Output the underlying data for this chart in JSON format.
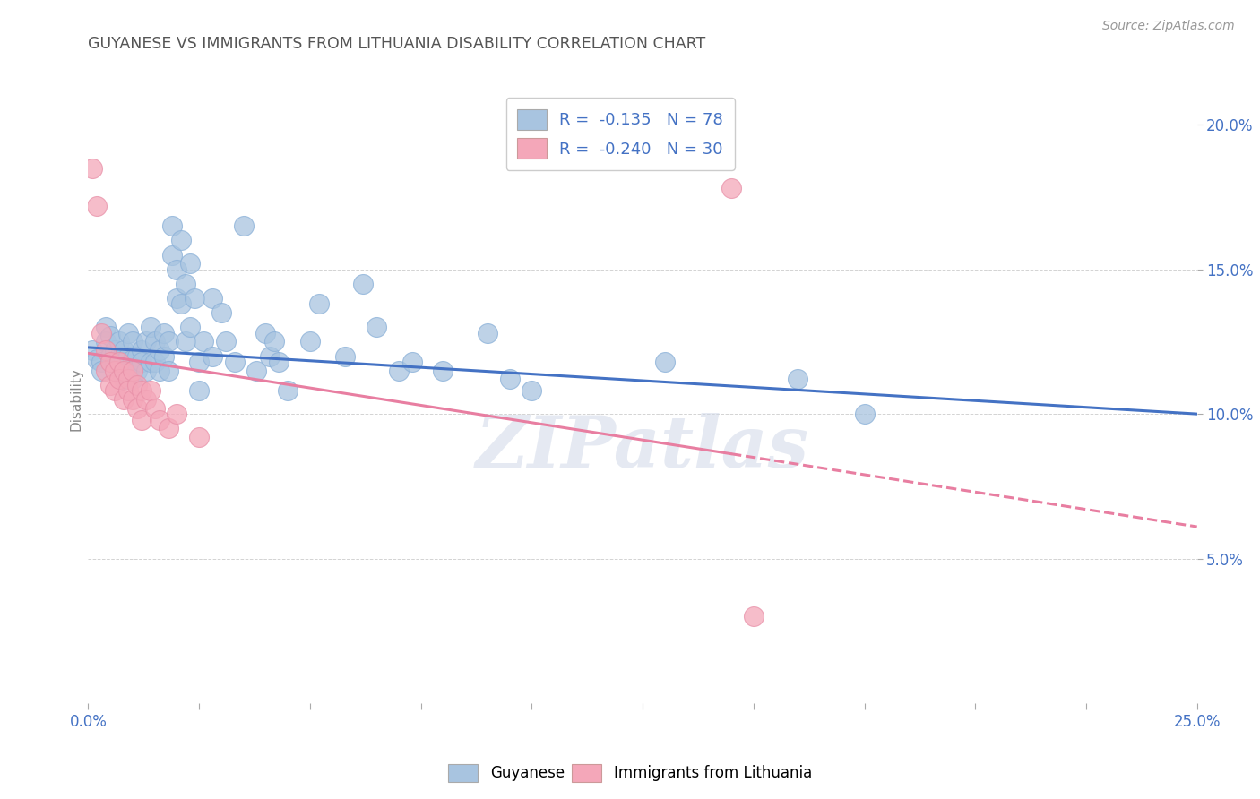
{
  "title": "GUYANESE VS IMMIGRANTS FROM LITHUANIA DISABILITY CORRELATION CHART",
  "source": "Source: ZipAtlas.com",
  "ylabel": "Disability",
  "xlabel": "",
  "xlim": [
    0.0,
    0.25
  ],
  "ylim": [
    0.0,
    0.21
  ],
  "xtick_positions": [
    0.0,
    0.025,
    0.05,
    0.075,
    0.1,
    0.125,
    0.15,
    0.175,
    0.2,
    0.225,
    0.25
  ],
  "xtick_labels_show": {
    "0.0": "0.0%",
    "0.25": "25.0%"
  },
  "yticks_right": [
    0.05,
    0.1,
    0.15,
    0.2
  ],
  "legend_r1": "R =  -0.135   N = 78",
  "legend_r2": "R =  -0.240   N = 30",
  "blue_color": "#a8c4e0",
  "pink_color": "#f4a7b9",
  "line_blue": "#4472c4",
  "line_pink": "#e87ea1",
  "axis_color": "#4472c4",
  "title_color": "#555555",
  "guyanese_points": [
    [
      0.001,
      0.122
    ],
    [
      0.002,
      0.119
    ],
    [
      0.003,
      0.118
    ],
    [
      0.003,
      0.115
    ],
    [
      0.004,
      0.13
    ],
    [
      0.004,
      0.125
    ],
    [
      0.005,
      0.127
    ],
    [
      0.005,
      0.12
    ],
    [
      0.006,
      0.122
    ],
    [
      0.006,
      0.118
    ],
    [
      0.007,
      0.125
    ],
    [
      0.007,
      0.12
    ],
    [
      0.007,
      0.115
    ],
    [
      0.008,
      0.122
    ],
    [
      0.008,
      0.118
    ],
    [
      0.008,
      0.112
    ],
    [
      0.009,
      0.128
    ],
    [
      0.009,
      0.12
    ],
    [
      0.009,
      0.115
    ],
    [
      0.01,
      0.125
    ],
    [
      0.01,
      0.119
    ],
    [
      0.01,
      0.112
    ],
    [
      0.011,
      0.12
    ],
    [
      0.011,
      0.115
    ],
    [
      0.012,
      0.122
    ],
    [
      0.012,
      0.118
    ],
    [
      0.013,
      0.125
    ],
    [
      0.013,
      0.115
    ],
    [
      0.014,
      0.13
    ],
    [
      0.014,
      0.118
    ],
    [
      0.015,
      0.125
    ],
    [
      0.015,
      0.118
    ],
    [
      0.016,
      0.122
    ],
    [
      0.016,
      0.115
    ],
    [
      0.017,
      0.128
    ],
    [
      0.017,
      0.12
    ],
    [
      0.018,
      0.125
    ],
    [
      0.018,
      0.115
    ],
    [
      0.019,
      0.165
    ],
    [
      0.019,
      0.155
    ],
    [
      0.02,
      0.15
    ],
    [
      0.02,
      0.14
    ],
    [
      0.021,
      0.16
    ],
    [
      0.021,
      0.138
    ],
    [
      0.022,
      0.145
    ],
    [
      0.022,
      0.125
    ],
    [
      0.023,
      0.152
    ],
    [
      0.023,
      0.13
    ],
    [
      0.024,
      0.14
    ],
    [
      0.025,
      0.118
    ],
    [
      0.025,
      0.108
    ],
    [
      0.026,
      0.125
    ],
    [
      0.028,
      0.14
    ],
    [
      0.028,
      0.12
    ],
    [
      0.03,
      0.135
    ],
    [
      0.031,
      0.125
    ],
    [
      0.033,
      0.118
    ],
    [
      0.035,
      0.165
    ],
    [
      0.038,
      0.115
    ],
    [
      0.04,
      0.128
    ],
    [
      0.041,
      0.12
    ],
    [
      0.042,
      0.125
    ],
    [
      0.043,
      0.118
    ],
    [
      0.045,
      0.108
    ],
    [
      0.05,
      0.125
    ],
    [
      0.052,
      0.138
    ],
    [
      0.058,
      0.12
    ],
    [
      0.062,
      0.145
    ],
    [
      0.065,
      0.13
    ],
    [
      0.07,
      0.115
    ],
    [
      0.073,
      0.118
    ],
    [
      0.08,
      0.115
    ],
    [
      0.09,
      0.128
    ],
    [
      0.095,
      0.112
    ],
    [
      0.1,
      0.108
    ],
    [
      0.13,
      0.118
    ],
    [
      0.16,
      0.112
    ],
    [
      0.175,
      0.1
    ]
  ],
  "lithuania_points": [
    [
      0.001,
      0.185
    ],
    [
      0.002,
      0.172
    ],
    [
      0.003,
      0.128
    ],
    [
      0.004,
      0.122
    ],
    [
      0.004,
      0.115
    ],
    [
      0.005,
      0.118
    ],
    [
      0.005,
      0.11
    ],
    [
      0.006,
      0.115
    ],
    [
      0.006,
      0.108
    ],
    [
      0.007,
      0.118
    ],
    [
      0.007,
      0.112
    ],
    [
      0.008,
      0.115
    ],
    [
      0.008,
      0.105
    ],
    [
      0.009,
      0.112
    ],
    [
      0.009,
      0.108
    ],
    [
      0.01,
      0.115
    ],
    [
      0.01,
      0.105
    ],
    [
      0.011,
      0.11
    ],
    [
      0.011,
      0.102
    ],
    [
      0.012,
      0.108
    ],
    [
      0.012,
      0.098
    ],
    [
      0.013,
      0.105
    ],
    [
      0.014,
      0.108
    ],
    [
      0.015,
      0.102
    ],
    [
      0.016,
      0.098
    ],
    [
      0.018,
      0.095
    ],
    [
      0.02,
      0.1
    ],
    [
      0.025,
      0.092
    ],
    [
      0.15,
      0.03
    ],
    [
      0.145,
      0.178
    ]
  ],
  "watermark": "ZIPatlas",
  "bg_color": "#ffffff",
  "grid_color": "#c8c8c8"
}
